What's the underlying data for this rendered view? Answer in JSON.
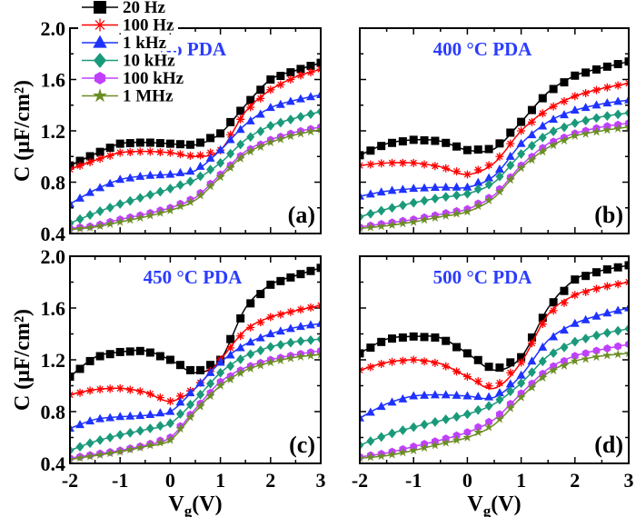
{
  "chart_data": [
    {
      "type": "line",
      "panel_label": "(a)",
      "title": "No PDA",
      "x": [
        -2,
        -1.5,
        -1,
        -0.5,
        0,
        0.5,
        1,
        1.5,
        2,
        2.5,
        3
      ],
      "series": [
        {
          "name": "20 Hz",
          "color": "#000000",
          "marker": "square",
          "values": [
            0.93,
            1.02,
            1.1,
            1.11,
            1.1,
            1.09,
            1.18,
            1.4,
            1.6,
            1.67,
            1.73
          ]
        },
        {
          "name": "100 Hz",
          "color": "#ff0000",
          "marker": "asterisk",
          "values": [
            0.9,
            0.97,
            1.03,
            1.04,
            1.03,
            1.0,
            1.05,
            1.35,
            1.52,
            1.62,
            1.68
          ]
        },
        {
          "name": "1 kHz",
          "color": "#1e32ff",
          "marker": "triangle",
          "values": [
            0.63,
            0.74,
            0.82,
            0.85,
            0.86,
            0.89,
            1.05,
            1.25,
            1.38,
            1.44,
            1.48
          ]
        },
        {
          "name": "10 kHz",
          "color": "#1a9a7a",
          "marker": "diamond",
          "values": [
            0.48,
            0.56,
            0.63,
            0.69,
            0.75,
            0.82,
            0.95,
            1.13,
            1.24,
            1.3,
            1.35
          ]
        },
        {
          "name": "100 kHz",
          "color": "#c040ff",
          "marker": "hexagon",
          "values": [
            0.44,
            0.46,
            0.51,
            0.55,
            0.6,
            0.68,
            0.86,
            1.04,
            1.13,
            1.19,
            1.23
          ]
        },
        {
          "name": "1 MHz",
          "color": "#6b8e23",
          "marker": "star",
          "values": [
            0.43,
            0.45,
            0.49,
            0.53,
            0.58,
            0.66,
            0.84,
            1.02,
            1.11,
            1.17,
            1.21
          ]
        }
      ]
    },
    {
      "type": "line",
      "panel_label": "(b)",
      "title": "400 °C PDA",
      "x": [
        -2,
        -1.5,
        -1,
        -0.5,
        0,
        0.5,
        1,
        1.5,
        2,
        2.5,
        3
      ],
      "series": [
        {
          "name": "20 Hz",
          "color": "#000000",
          "marker": "square",
          "values": [
            1.01,
            1.1,
            1.13,
            1.12,
            1.05,
            1.06,
            1.27,
            1.5,
            1.63,
            1.69,
            1.74
          ]
        },
        {
          "name": "100 Hz",
          "color": "#ff0000",
          "marker": "asterisk",
          "values": [
            0.93,
            0.95,
            0.95,
            0.92,
            0.86,
            0.95,
            1.2,
            1.37,
            1.47,
            1.53,
            1.57
          ]
        },
        {
          "name": "1 kHz",
          "color": "#1e32ff",
          "marker": "triangle",
          "values": [
            0.69,
            0.73,
            0.75,
            0.76,
            0.76,
            0.85,
            1.1,
            1.27,
            1.36,
            1.41,
            1.44
          ]
        },
        {
          "name": "10 kHz",
          "color": "#1a9a7a",
          "marker": "diamond",
          "values": [
            0.53,
            0.59,
            0.64,
            0.68,
            0.71,
            0.8,
            1.02,
            1.18,
            1.26,
            1.31,
            1.34
          ]
        },
        {
          "name": "100 kHz",
          "color": "#c040ff",
          "marker": "hexagon",
          "values": [
            0.45,
            0.48,
            0.51,
            0.55,
            0.59,
            0.7,
            0.93,
            1.1,
            1.18,
            1.23,
            1.26
          ]
        },
        {
          "name": "1 MHz",
          "color": "#6b8e23",
          "marker": "star",
          "values": [
            0.44,
            0.46,
            0.49,
            0.53,
            0.57,
            0.68,
            0.91,
            1.07,
            1.16,
            1.2,
            1.23
          ]
        }
      ]
    },
    {
      "type": "line",
      "panel_label": "(c)",
      "title": "450 °C PDA",
      "x": [
        -2,
        -1.5,
        -1,
        -0.5,
        0,
        0.5,
        1,
        1.5,
        2,
        2.5,
        3
      ],
      "series": [
        {
          "name": "20 Hz",
          "color": "#000000",
          "marker": "square",
          "values": [
            1.07,
            1.22,
            1.26,
            1.27,
            1.2,
            1.1,
            1.2,
            1.6,
            1.78,
            1.85,
            1.91
          ]
        },
        {
          "name": "100 Hz",
          "color": "#ff0000",
          "marker": "asterisk",
          "values": [
            0.93,
            0.97,
            0.98,
            0.95,
            0.88,
            0.98,
            1.2,
            1.43,
            1.53,
            1.58,
            1.62
          ]
        },
        {
          "name": "1 kHz",
          "color": "#1e32ff",
          "marker": "triangle",
          "values": [
            0.67,
            0.74,
            0.76,
            0.77,
            0.8,
            0.98,
            1.18,
            1.32,
            1.4,
            1.45,
            1.48
          ]
        },
        {
          "name": "10 kHz",
          "color": "#1a9a7a",
          "marker": "diamond",
          "values": [
            0.5,
            0.57,
            0.62,
            0.66,
            0.71,
            0.89,
            1.1,
            1.23,
            1.3,
            1.34,
            1.36
          ]
        },
        {
          "name": "100 kHz",
          "color": "#c040ff",
          "marker": "hexagon",
          "values": [
            0.44,
            0.47,
            0.5,
            0.54,
            0.6,
            0.82,
            1.03,
            1.14,
            1.2,
            1.24,
            1.27
          ]
        },
        {
          "name": "1 MHz",
          "color": "#6b8e23",
          "marker": "star",
          "values": [
            0.43,
            0.46,
            0.49,
            0.53,
            0.58,
            0.8,
            1.0,
            1.12,
            1.18,
            1.22,
            1.24
          ]
        }
      ]
    },
    {
      "type": "line",
      "panel_label": "(d)",
      "title": "500 °C PDA",
      "x": [
        -2,
        -1.5,
        -1,
        -0.5,
        0,
        0.5,
        1,
        1.5,
        2,
        2.5,
        3
      ],
      "series": [
        {
          "name": "20 Hz",
          "color": "#000000",
          "marker": "square",
          "values": [
            1.25,
            1.36,
            1.38,
            1.37,
            1.25,
            1.12,
            1.22,
            1.6,
            1.82,
            1.89,
            1.93
          ]
        },
        {
          "name": "100 Hz",
          "color": "#ff0000",
          "marker": "asterisk",
          "values": [
            1.12,
            1.18,
            1.2,
            1.17,
            1.07,
            0.98,
            1.18,
            1.55,
            1.7,
            1.76,
            1.8
          ]
        },
        {
          "name": "1 kHz",
          "color": "#1e32ff",
          "marker": "triangle",
          "values": [
            0.75,
            0.86,
            0.92,
            0.93,
            0.92,
            0.91,
            1.08,
            1.35,
            1.48,
            1.55,
            1.6
          ]
        },
        {
          "name": "10 kHz",
          "color": "#1a9a7a",
          "marker": "diamond",
          "values": [
            0.54,
            0.62,
            0.68,
            0.73,
            0.78,
            0.86,
            1.02,
            1.23,
            1.34,
            1.4,
            1.44
          ]
        },
        {
          "name": "100 kHz",
          "color": "#c040ff",
          "marker": "hexagon",
          "values": [
            0.45,
            0.48,
            0.53,
            0.58,
            0.64,
            0.74,
            0.94,
            1.13,
            1.23,
            1.28,
            1.32
          ]
        },
        {
          "name": "1 MHz",
          "color": "#6b8e23",
          "marker": "star",
          "values": [
            0.44,
            0.46,
            0.5,
            0.55,
            0.6,
            0.7,
            0.91,
            1.1,
            1.19,
            1.23,
            1.25
          ]
        }
      ]
    }
  ],
  "axes": {
    "xlabel_main": "V",
    "xlabel_sub": "g",
    "xlabel_unit": "(V)",
    "ylabel": "C (μF/cm²)",
    "xlim": [
      -2,
      3
    ],
    "ylim": [
      0.4,
      2.0
    ],
    "xticks": [
      "-2",
      "-1",
      "0",
      "1",
      "2",
      "3"
    ],
    "yticks": [
      "0.4",
      "0.8",
      "1.2",
      "1.6",
      "2.0"
    ],
    "legend_placement": "top-left",
    "grid": false
  }
}
